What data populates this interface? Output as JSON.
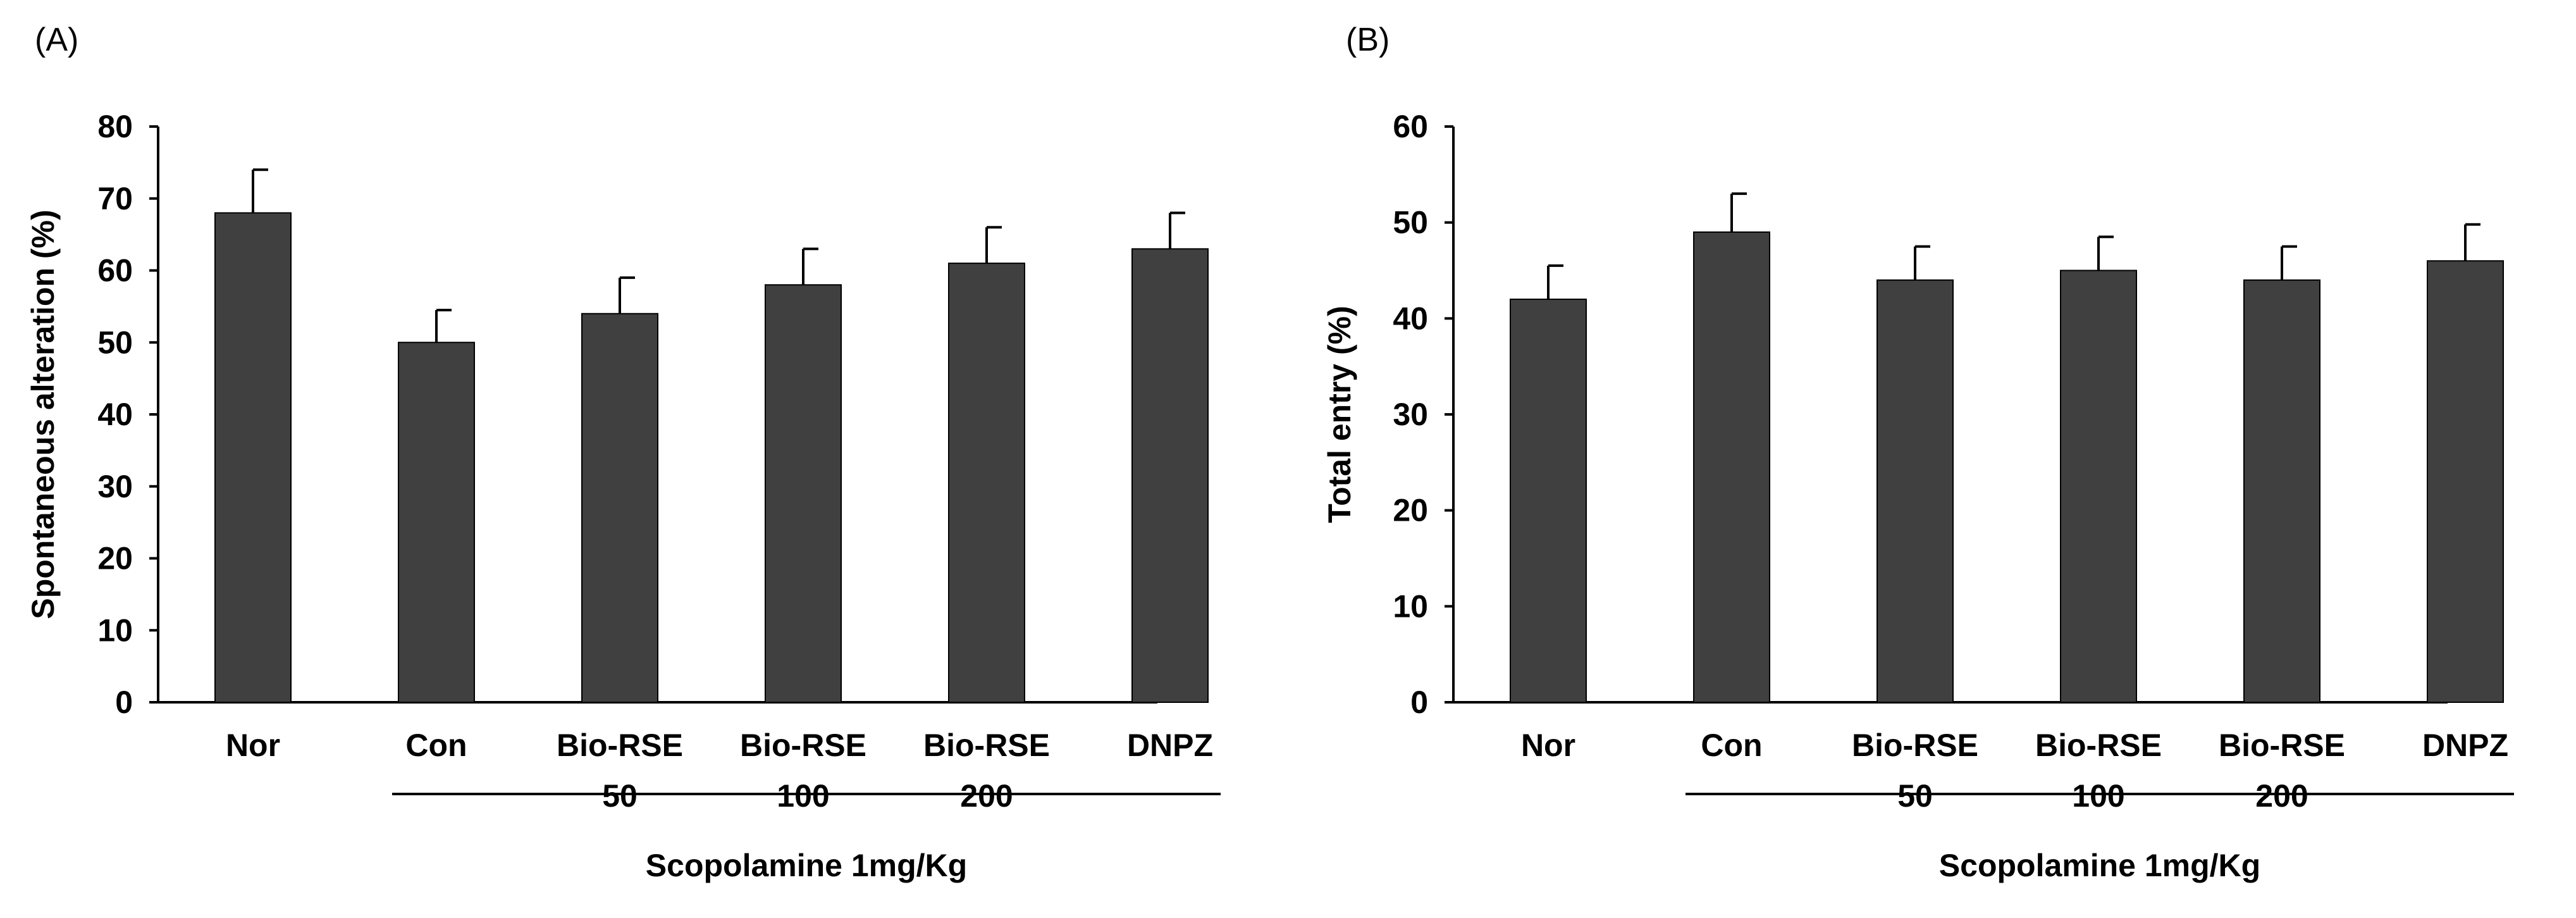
{
  "chart_data": [
    {
      "type": "bar",
      "panel_label": "(A)",
      "ylabel": "Spontaneous alteration (%)",
      "xlabel": "",
      "ylim": [
        0,
        80
      ],
      "yticks": [
        0,
        10,
        20,
        30,
        40,
        50,
        60,
        70,
        80
      ],
      "categories": [
        [
          "Nor"
        ],
        [
          "Con"
        ],
        [
          "Bio-RSE",
          "50"
        ],
        [
          "Bio-RSE",
          "100"
        ],
        [
          "Bio-RSE",
          "200"
        ],
        [
          "DNPZ"
        ]
      ],
      "values": [
        68,
        50,
        54,
        58,
        61,
        63
      ],
      "errors": [
        6,
        4.5,
        5,
        5,
        5,
        5
      ],
      "group_label": "Scopolamine 1mg/Kg",
      "group_span": [
        1,
        5
      ],
      "bar_color": "#404040",
      "grid": false
    },
    {
      "type": "bar",
      "panel_label": "(B)",
      "ylabel": "Total entry (%)",
      "xlabel": "",
      "ylim": [
        0,
        60
      ],
      "yticks": [
        0,
        10,
        20,
        30,
        40,
        50,
        60
      ],
      "categories": [
        [
          "Nor"
        ],
        [
          "Con"
        ],
        [
          "Bio-RSE",
          "50"
        ],
        [
          "Bio-RSE",
          "100"
        ],
        [
          "Bio-RSE",
          "200"
        ],
        [
          "DNPZ"
        ]
      ],
      "values": [
        42,
        49,
        44,
        45,
        44,
        46
      ],
      "errors": [
        3.5,
        4,
        3.5,
        3.5,
        3.5,
        3.8
      ],
      "group_label": "Scopolamine 1mg/Kg",
      "group_span": [
        1,
        5
      ],
      "bar_color": "#404040",
      "grid": false
    }
  ]
}
